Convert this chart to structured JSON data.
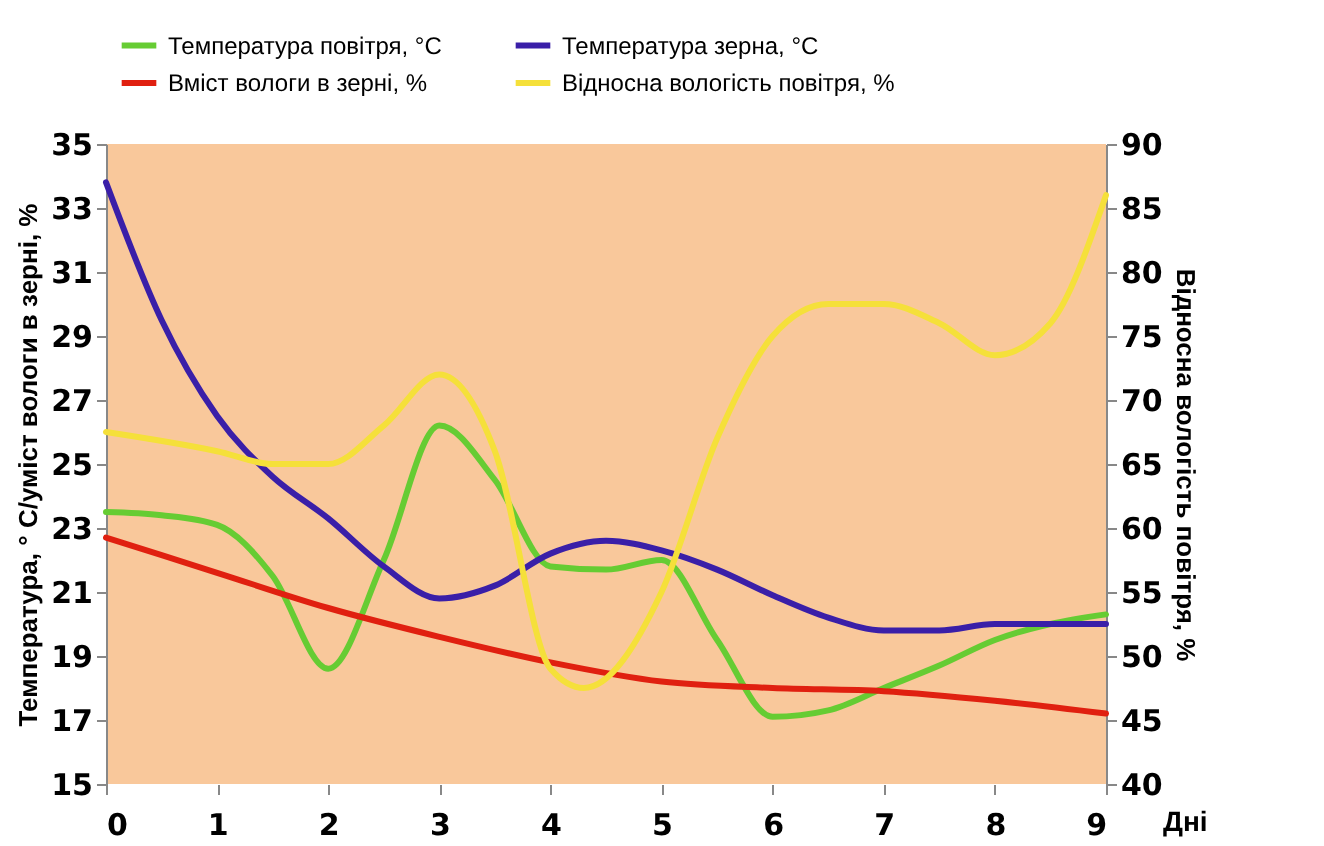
{
  "chart_data": {
    "type": "line",
    "xlabel": "Дні",
    "ylabel": "Температура, ° С/уміст вологи в зерні, %",
    "y2label": "Відносна вологість повітря, %",
    "xlim": [
      0,
      9
    ],
    "xticks": [
      0,
      1,
      2,
      3,
      4,
      5,
      6,
      7,
      8,
      9
    ],
    "ylim": [
      15,
      35
    ],
    "yticks": [
      15,
      17,
      19,
      21,
      23,
      25,
      27,
      29,
      31,
      33,
      35
    ],
    "y2lim": [
      40,
      90
    ],
    "y2ticks": [
      40,
      45,
      50,
      55,
      60,
      65,
      70,
      75,
      80,
      85,
      90
    ],
    "grid": false,
    "legend": "top",
    "line_style": "solid",
    "marker": "none",
    "series": [
      {
        "name": "Температура повітря, °C",
        "color": "#66cc33",
        "x": [
          0,
          0.5,
          1,
          1.5,
          2,
          2.5,
          3,
          3.5,
          4,
          4.5,
          5,
          5.5,
          6,
          6.5,
          7,
          7.5,
          8,
          8.5,
          9
        ],
        "values": [
          23.5,
          23.4,
          23.1,
          21.5,
          18.6,
          22,
          26.2,
          24.5,
          21.8,
          21.7,
          22,
          19.5,
          17.1,
          17.3,
          18,
          18.7,
          19.5,
          20,
          20.3
        ]
      },
      {
        "name": "Температура зерна, °C",
        "color": "#3a1fa8",
        "x": [
          0,
          0.5,
          1,
          1.5,
          2,
          2.5,
          3,
          3.5,
          4,
          4.5,
          5,
          5.5,
          6,
          6.5,
          7,
          7.5,
          8,
          9
        ],
        "values": [
          33.8,
          29.5,
          26.5,
          24.6,
          23.3,
          21.8,
          20.8,
          21.2,
          22.2,
          22.6,
          22.3,
          21.7,
          20.9,
          20.2,
          19.8,
          19.8,
          20,
          20
        ]
      },
      {
        "name": "Вміст вологи в зерні, %",
        "color": "#e02010",
        "x": [
          0,
          1,
          2,
          3,
          4,
          5,
          6,
          7,
          8,
          9
        ],
        "values": [
          22.7,
          21.6,
          20.5,
          19.6,
          18.8,
          18.2,
          18,
          17.9,
          17.6,
          17.2
        ]
      },
      {
        "name": "Відносна вологість повітря, %",
        "color": "#f5e03a",
        "axis": "y2",
        "x": [
          0,
          1,
          1.5,
          2,
          2.5,
          3,
          3.5,
          4,
          4.3,
          5,
          5.5,
          6,
          6.5,
          7,
          7.5,
          8,
          8.5,
          9
        ],
        "values": [
          67.5,
          66,
          65,
          65,
          68,
          72,
          66,
          49,
          47.5,
          55,
          67,
          75,
          77.5,
          77.5,
          76,
          73.5,
          76,
          86
        ]
      }
    ]
  }
}
